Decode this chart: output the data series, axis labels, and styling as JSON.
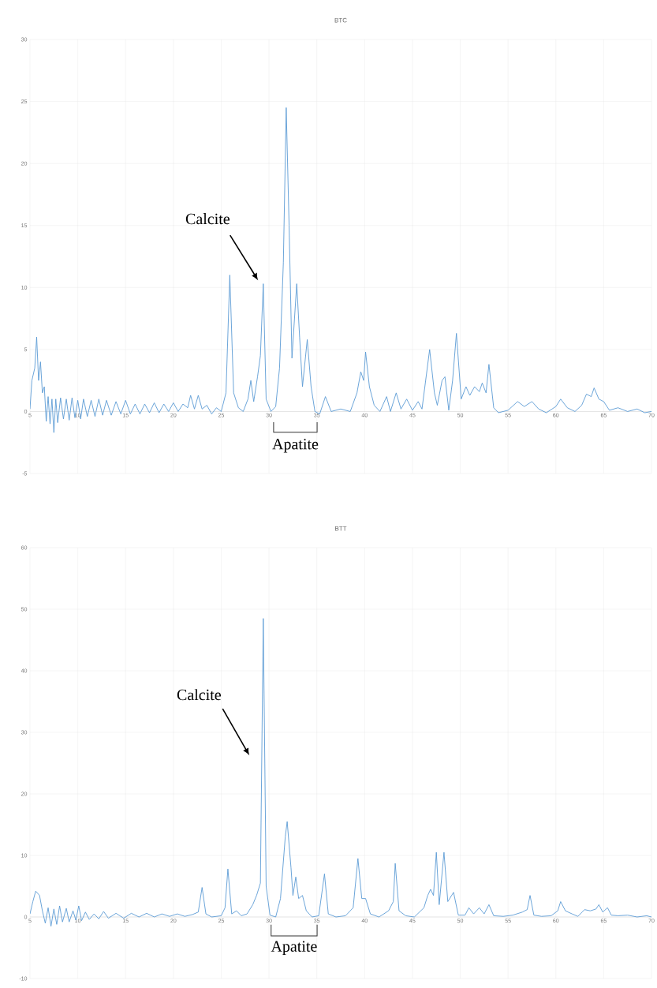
{
  "chart_data": [
    {
      "type": "line",
      "title": "BTC",
      "color": "#5b9bd5",
      "grid": true,
      "x": [
        5,
        5.2,
        5.5,
        5.7,
        5.9,
        6.1,
        6.3,
        6.5,
        6.7,
        6.9,
        7.1,
        7.3,
        7.5,
        7.7,
        7.9,
        8.2,
        8.5,
        8.8,
        9.1,
        9.4,
        9.7,
        10,
        10.3,
        10.6,
        11,
        11.4,
        11.8,
        12.2,
        12.6,
        13,
        13.5,
        14,
        14.5,
        15,
        15.5,
        16,
        16.5,
        17,
        17.5,
        18,
        18.5,
        19,
        19.5,
        20,
        20.5,
        21,
        21.5,
        21.8,
        22.2,
        22.6,
        23,
        23.5,
        24,
        24.5,
        25,
        25.5,
        25.9,
        26.3,
        26.8,
        27.3,
        27.8,
        28.1,
        28.4,
        28.8,
        29.1,
        29.4,
        29.7,
        30.2,
        30.7,
        31.1,
        31.5,
        31.8,
        32.1,
        32.4,
        32.9,
        33.2,
        33.5,
        34.0,
        34.4,
        34.8,
        35.3,
        35.9,
        36.5,
        37.5,
        38.5,
        39.2,
        39.6,
        39.9,
        40.1,
        40.5,
        41,
        41.6,
        42.3,
        42.7,
        43.3,
        43.8,
        44.4,
        45,
        45.6,
        46.0,
        46.8,
        47.3,
        47.6,
        48.1,
        48.4,
        48.8,
        49.2,
        49.6,
        50.1,
        50.6,
        51.0,
        51.5,
        52.0,
        52.3,
        52.7,
        53.0,
        53.5,
        54,
        55,
        56,
        56.7,
        57.5,
        58.2,
        59,
        60,
        60.5,
        61.2,
        62,
        62.7,
        63.2,
        63.7,
        64.0,
        64.5,
        65,
        65.6,
        66.5,
        67.5,
        68.5,
        69.3,
        70
      ],
      "values": [
        0.2,
        2.5,
        3.5,
        6.0,
        2.5,
        4.0,
        1.5,
        2.0,
        -0.8,
        1.2,
        -1.0,
        1.0,
        -1.7,
        1.0,
        -0.9,
        1.1,
        -0.6,
        1.0,
        -0.7,
        1.1,
        -0.5,
        0.9,
        -0.6,
        1.0,
        -0.4,
        0.9,
        -0.4,
        1.0,
        -0.3,
        0.9,
        -0.3,
        0.8,
        -0.2,
        0.9,
        -0.2,
        0.6,
        -0.2,
        0.6,
        -0.1,
        0.7,
        -0.1,
        0.6,
        0,
        0.7,
        0,
        0.6,
        0.3,
        1.3,
        0.2,
        1.3,
        0.2,
        0.5,
        -0.2,
        0.3,
        0.0,
        1.5,
        11.0,
        1.5,
        0.3,
        0.0,
        1.0,
        2.5,
        0.8,
        2.8,
        4.5,
        10.3,
        1.0,
        0.0,
        0.4,
        3.5,
        12,
        24.5,
        15,
        4.3,
        10.3,
        6,
        2.0,
        5.8,
        2,
        0,
        -0.2,
        1.2,
        0,
        0.2,
        0,
        1.5,
        3.2,
        2.5,
        4.8,
        2,
        0.5,
        0,
        1.2,
        0.0,
        1.5,
        0.2,
        1,
        0.1,
        0.8,
        0.2,
        5.0,
        1.5,
        0.5,
        2.5,
        2.8,
        0.1,
        2.5,
        6.3,
        1.0,
        2.0,
        1.3,
        2.0,
        1.6,
        2.3,
        1.5,
        3.8,
        0.3,
        -0.1,
        0.1,
        0.8,
        0.4,
        0.8,
        0.2,
        -0.1,
        0.4,
        1.0,
        0.3,
        0.0,
        0.5,
        1.4,
        1.2,
        1.9,
        1.0,
        0.8,
        0.1,
        0.3,
        0.0,
        0.2,
        -0.1,
        0.0
      ],
      "xlim": [
        5,
        70
      ],
      "xticks": [
        5,
        10,
        15,
        20,
        25,
        30,
        35,
        40,
        45,
        50,
        55,
        60,
        65,
        70
      ],
      "ylim": [
        -5,
        30
      ],
      "yticks": [
        -5,
        0,
        5,
        10,
        15,
        20,
        25,
        30
      ],
      "annotations": [
        "Calcite",
        "Apatite"
      ]
    },
    {
      "type": "line",
      "title": "BTT",
      "color": "#5b9bd5",
      "grid": true,
      "x": [
        5,
        5.3,
        5.6,
        6.0,
        6.3,
        6.6,
        6.9,
        7.2,
        7.5,
        7.8,
        8.1,
        8.4,
        8.8,
        9.1,
        9.5,
        9.8,
        10.1,
        10.4,
        10.8,
        11.2,
        11.7,
        12.2,
        12.7,
        13.2,
        14,
        14.8,
        15.6,
        16.4,
        17.2,
        18,
        18.8,
        19.6,
        20.4,
        21.2,
        22,
        22.6,
        23.0,
        23.4,
        24,
        25,
        25.4,
        25.7,
        26.1,
        26.6,
        27.1,
        27.7,
        28.3,
        28.7,
        29.1,
        29.4,
        29.7,
        30.1,
        30.7,
        31.2,
        31.7,
        31.9,
        32.3,
        32.5,
        32.8,
        33.1,
        33.5,
        33.9,
        34.5,
        35.2,
        35.8,
        36.2,
        37,
        38,
        38.8,
        39.3,
        39.7,
        40.1,
        40.6,
        41.5,
        42.5,
        43.0,
        43.2,
        43.6,
        44.3,
        45.2,
        46.2,
        46.6,
        46.9,
        47.2,
        47.5,
        47.8,
        48.3,
        48.7,
        49.3,
        49.8,
        50.5,
        50.9,
        51.4,
        52,
        52.5,
        53.0,
        53.5,
        54.5,
        55.5,
        56.5,
        57.0,
        57.3,
        57.7,
        58.5,
        59.5,
        60.2,
        60.5,
        61,
        61.7,
        62.3,
        63,
        63.6,
        64.2,
        64.5,
        64.9,
        65.4,
        65.8,
        66.5,
        67.5,
        68.5,
        69.5,
        70
      ],
      "values": [
        0.5,
        2.5,
        4.2,
        3.5,
        1.0,
        -1.0,
        1.5,
        -1.5,
        1.3,
        -1.2,
        1.8,
        -0.8,
        1.4,
        -0.8,
        1.0,
        -0.5,
        1.8,
        -0.6,
        0.8,
        -0.4,
        0.5,
        -0.3,
        0.9,
        -0.2,
        0.6,
        -0.2,
        0.6,
        0,
        0.6,
        0,
        0.5,
        0.1,
        0.5,
        0.1,
        0.4,
        0.8,
        4.8,
        0.5,
        0.0,
        0.2,
        1.5,
        7.8,
        0.5,
        1.0,
        0.2,
        0.5,
        2.0,
        3.5,
        5.5,
        48.5,
        5.0,
        0.3,
        0,
        3,
        13,
        15.5,
        8,
        3.5,
        6.5,
        3.0,
        3.5,
        1.0,
        0,
        0.2,
        7.0,
        0.5,
        0.0,
        0.2,
        1.5,
        9.5,
        3.0,
        3.0,
        0.5,
        0,
        1.0,
        2.5,
        8.7,
        1.0,
        0.2,
        0.0,
        1.5,
        3.5,
        4.5,
        3.5,
        10.5,
        2,
        10.5,
        2.5,
        4.0,
        0.3,
        0.3,
        1.5,
        0.5,
        1.5,
        0.5,
        2.0,
        0.2,
        0.1,
        0.3,
        0.8,
        1.2,
        3.5,
        0.3,
        0.1,
        0.2,
        1,
        2.5,
        1.0,
        0.5,
        0.1,
        1.2,
        1.0,
        1.3,
        2.0,
        0.8,
        1.5,
        0.3,
        0.2,
        0.3,
        0.0,
        0.2,
        0
      ],
      "xlim": [
        5,
        70
      ],
      "xticks": [
        5,
        10,
        15,
        20,
        25,
        30,
        35,
        40,
        45,
        50,
        55,
        60,
        65,
        70
      ],
      "ylim": [
        -10,
        60
      ],
      "yticks": [
        -10,
        0,
        10,
        20,
        30,
        40,
        50,
        60
      ],
      "annotations": [
        "Calcite",
        "Apatite"
      ]
    }
  ]
}
